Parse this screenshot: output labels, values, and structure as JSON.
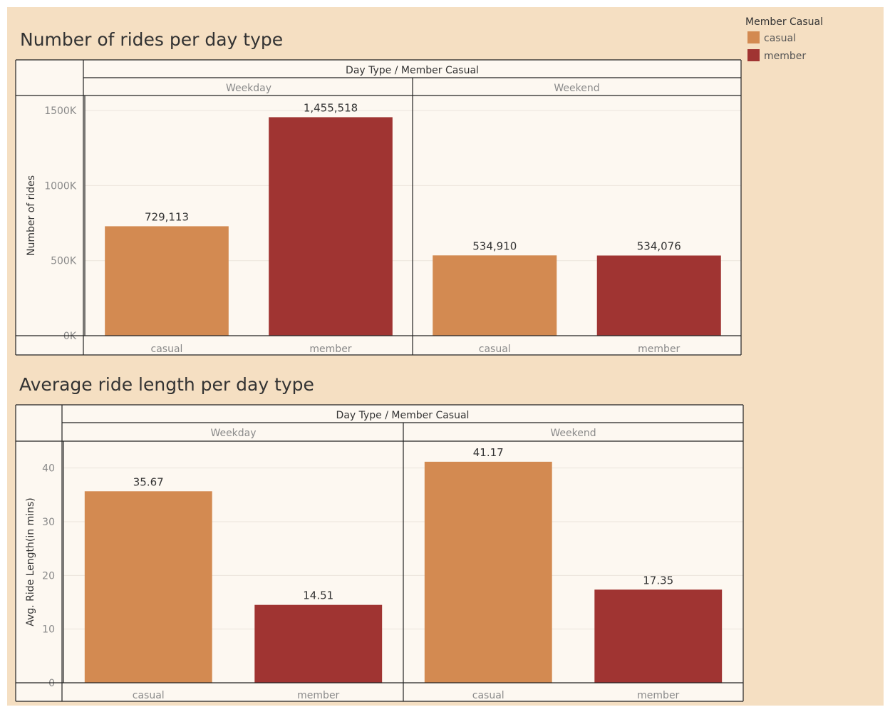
{
  "legend": {
    "title": "Member Casual",
    "items": [
      {
        "label": "casual",
        "color": "#d38a51"
      },
      {
        "label": "member",
        "color": "#a03432"
      }
    ]
  },
  "chart_data": [
    {
      "type": "bar",
      "title": "Number of rides per day type",
      "column_header": "Day Type  /  Member Casual",
      "panels": [
        "Weekday",
        "Weekend"
      ],
      "categories": [
        "casual",
        "member"
      ],
      "ylabel": "Number of rides",
      "ylim": [
        0,
        1600000
      ],
      "yticks": [
        0,
        500000,
        1000000,
        1500000
      ],
      "ytick_labels": [
        "0K",
        "500K",
        "1000K",
        "1500K"
      ],
      "grid": true,
      "values": [
        {
          "panel": "Weekday",
          "category": "casual",
          "value": 729113,
          "label": "729,113"
        },
        {
          "panel": "Weekday",
          "category": "member",
          "value": 1455518,
          "label": "1,455,518"
        },
        {
          "panel": "Weekend",
          "category": "casual",
          "value": 534910,
          "label": "534,910"
        },
        {
          "panel": "Weekend",
          "category": "member",
          "value": 534076,
          "label": "534,076"
        }
      ]
    },
    {
      "type": "bar",
      "title": "Average ride length per day type",
      "column_header": "Day Type  /  Member Casual",
      "panels": [
        "Weekday",
        "Weekend"
      ],
      "categories": [
        "casual",
        "member"
      ],
      "ylabel": "Avg. Ride Length(in mins)",
      "ylim": [
        0,
        45
      ],
      "yticks": [
        0,
        10,
        20,
        30,
        40
      ],
      "ytick_labels": [
        "0",
        "10",
        "20",
        "30",
        "40"
      ],
      "grid": true,
      "values": [
        {
          "panel": "Weekday",
          "category": "casual",
          "value": 35.67,
          "label": "35.67"
        },
        {
          "panel": "Weekday",
          "category": "member",
          "value": 14.51,
          "label": "14.51"
        },
        {
          "panel": "Weekend",
          "category": "casual",
          "value": 41.17,
          "label": "41.17"
        },
        {
          "panel": "Weekend",
          "category": "member",
          "value": 17.35,
          "label": "17.35"
        }
      ]
    }
  ]
}
